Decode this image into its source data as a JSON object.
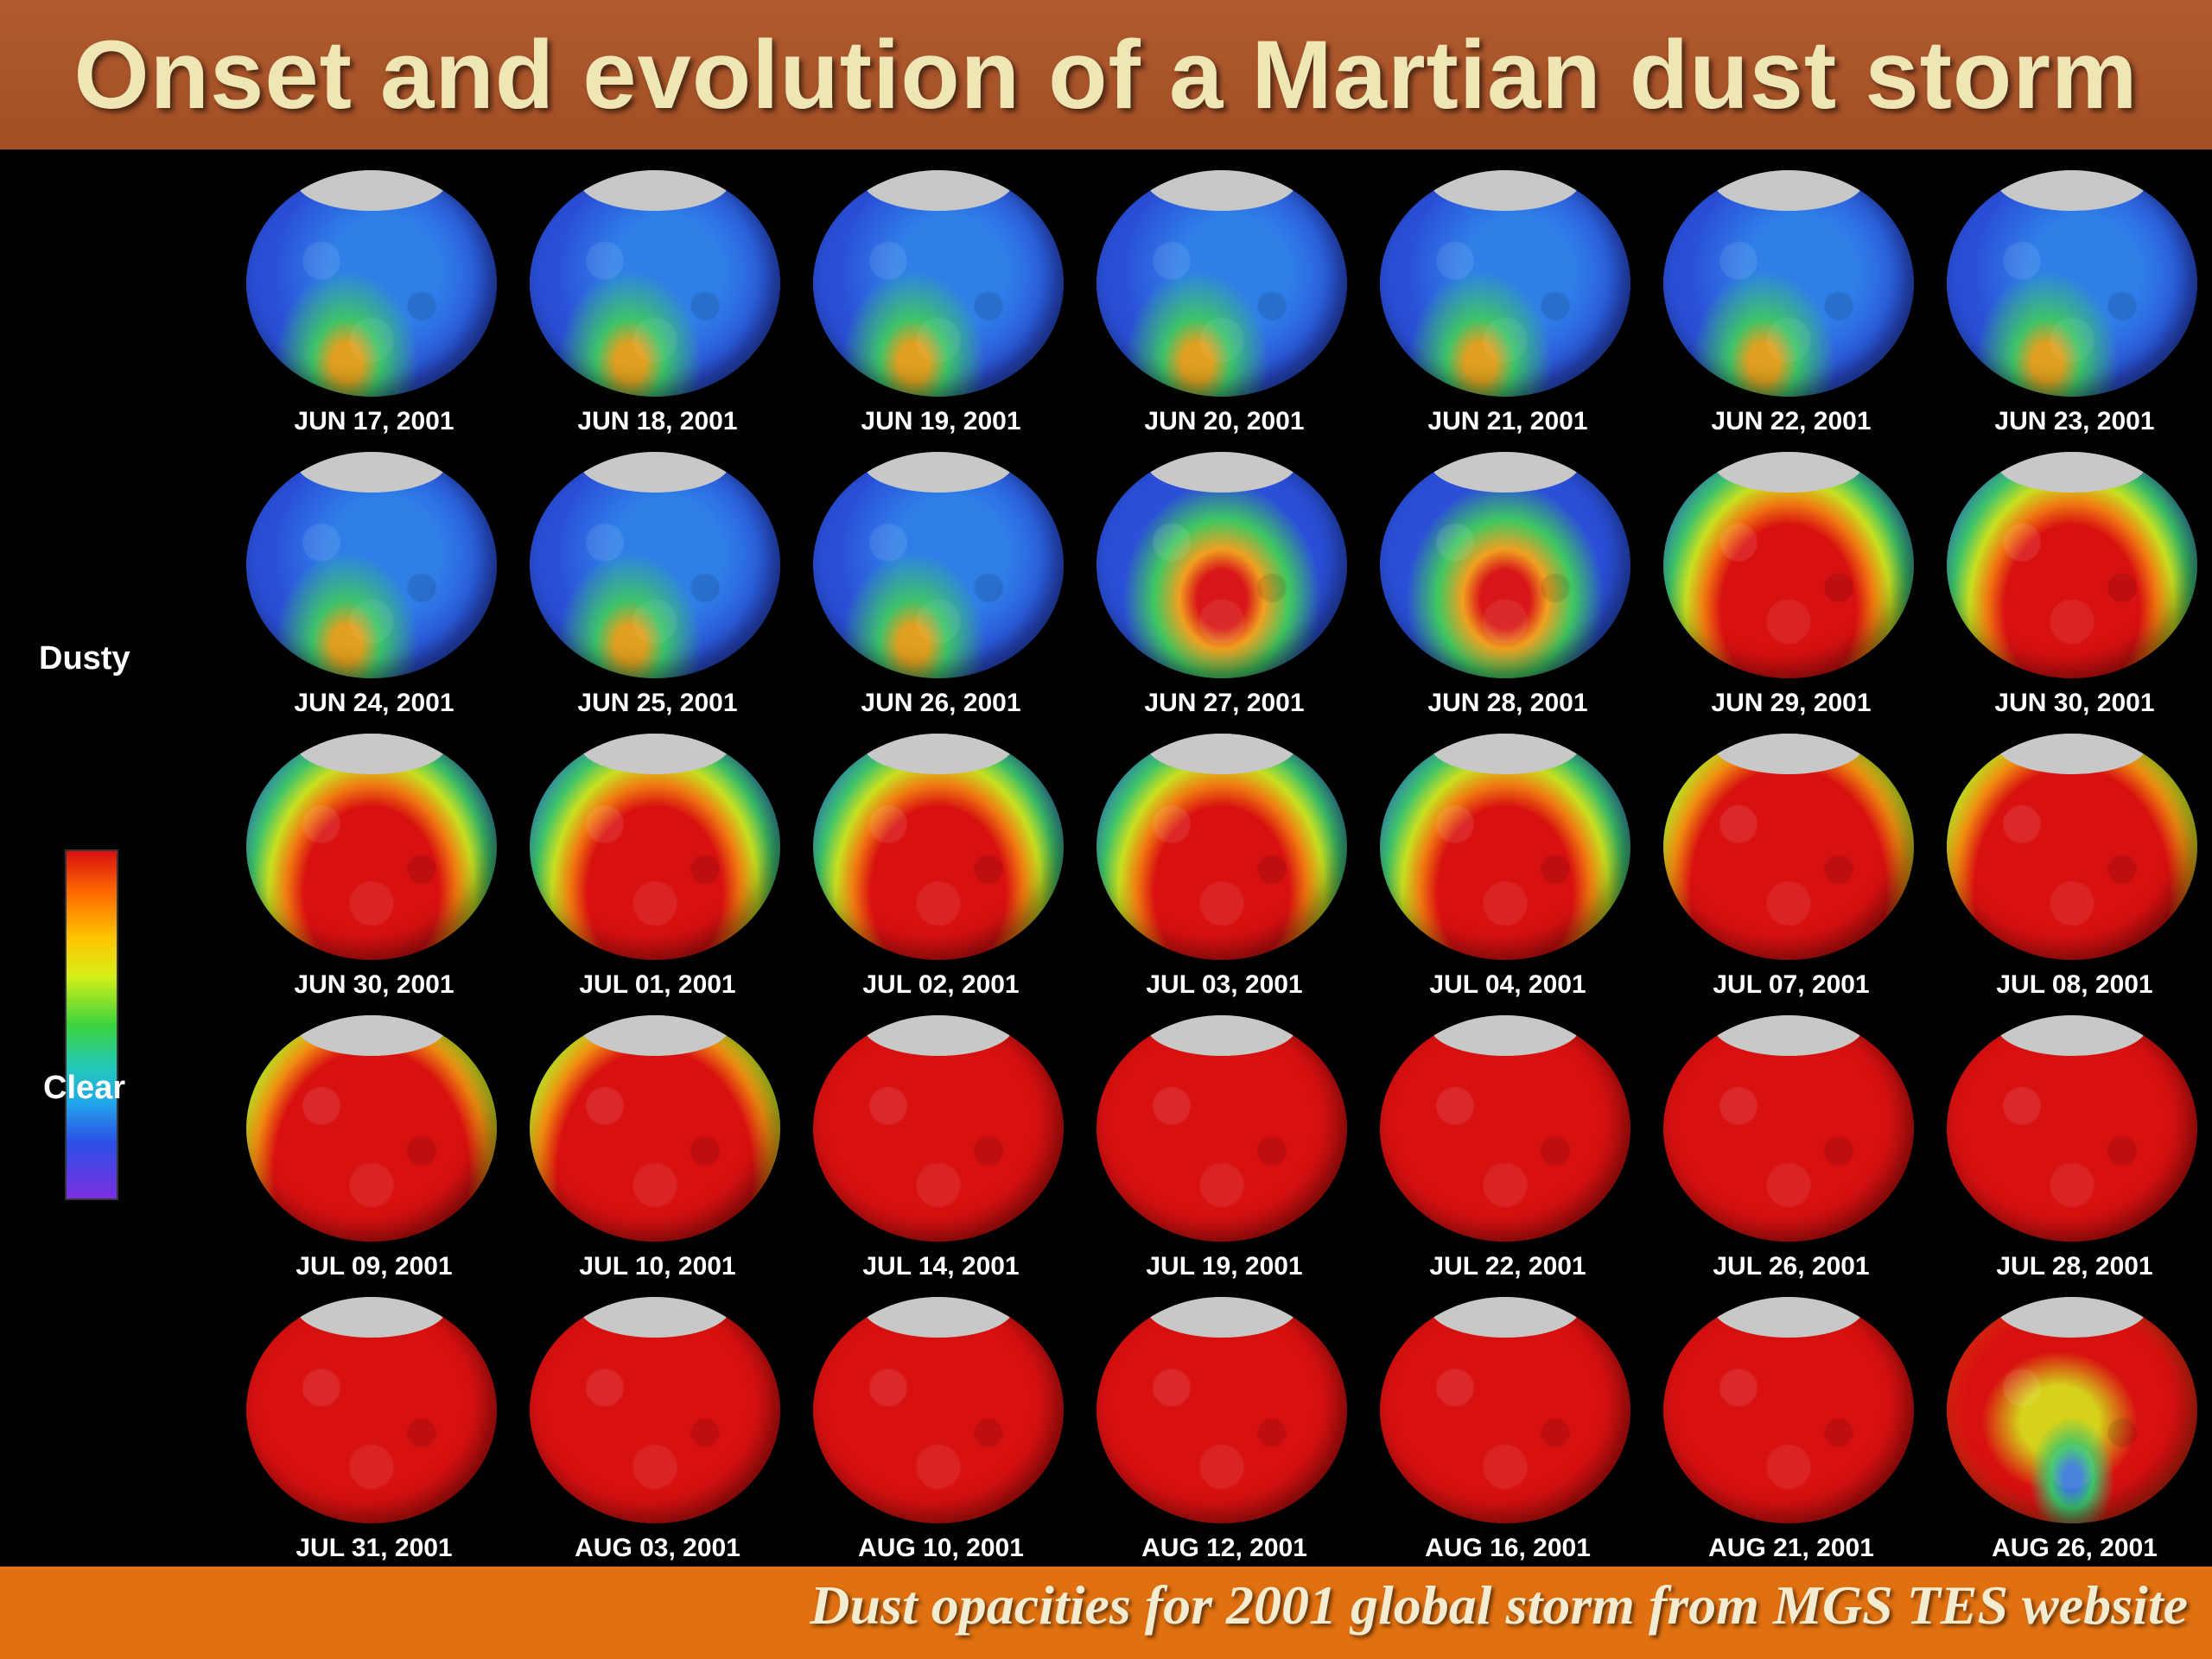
{
  "header": {
    "title": "Onset and evolution of a Martian dust storm"
  },
  "legend": {
    "top_label": "Dusty",
    "bottom_label": "Clear"
  },
  "footer": {
    "caption": "Dust opacities for 2001 global storm from MGS TES website"
  },
  "colors": {
    "clear": "#2a4fd8",
    "dusty": "#d81010"
  },
  "dates": [
    "JUN 17, 2001",
    "JUN 18, 2001",
    "JUN 19, 2001",
    "JUN 20, 2001",
    "JUN 21, 2001",
    "JUN 22, 2001",
    "JUN 23, 2001",
    "JUN 24, 2001",
    "JUN 25, 2001",
    "JUN 26, 2001",
    "JUN 27, 2001",
    "JUN 28, 2001",
    "JUN 29, 2001",
    "JUN 30, 2001",
    "JUN 30, 2001",
    "JUL 01, 2001",
    "JUL 02, 2001",
    "JUL 03, 2001",
    "JUL 04, 2001",
    "JUL 07, 2001",
    "JUL 08, 2001",
    "JUL 09, 2001",
    "JUL 10, 2001",
    "JUL 14, 2001",
    "JUL 19, 2001",
    "JUL 22, 2001",
    "JUL 26, 2001",
    "JUL 28, 2001",
    "JUL 31, 2001",
    "AUG 03, 2001",
    "AUG 10, 2001",
    "AUG 12, 2001",
    "AUG 16, 2001",
    "AUG 21, 2001",
    "AUG 26, 2001"
  ]
}
